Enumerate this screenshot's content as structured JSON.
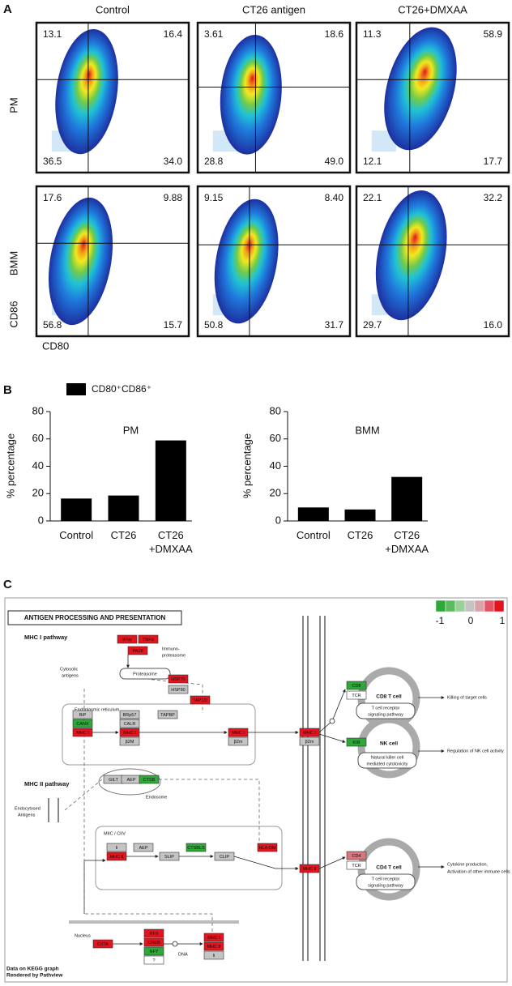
{
  "panel_labels": [
    "A",
    "B",
    "C"
  ],
  "flow": {
    "columns": [
      "Control",
      "CT26 antigen",
      "CT26+DMXAA"
    ],
    "rows": [
      "PM",
      "BMM"
    ],
    "y_axis_label": "CD86",
    "x_axis_label": "CD80",
    "plots": [
      [
        "13.1",
        "16.4",
        "36.5",
        "34.0"
      ],
      [
        "3.61",
        "18.6",
        "28.8",
        "49.0"
      ],
      [
        "11.3",
        "58.9",
        "12.1",
        "17.7"
      ],
      [
        "17.6",
        "9.88",
        "56.8",
        "15.7"
      ],
      [
        "9.15",
        "8.40",
        "50.8",
        "31.7"
      ],
      [
        "22.1",
        "32.2",
        "29.7",
        "16.0"
      ]
    ]
  },
  "bar_legend": "CD80⁺CD86⁺",
  "chart_data": [
    {
      "type": "bar",
      "title": "PM",
      "y_label": "% percentage",
      "categories": [
        "Control",
        "CT26",
        "CT26 +DMXAA"
      ],
      "values": [
        16.4,
        18.6,
        58.9
      ],
      "color": "#000000",
      "ylim": [
        0,
        80
      ],
      "yticks": [
        0,
        20,
        40,
        60,
        80
      ]
    },
    {
      "type": "bar",
      "title": "BMM",
      "y_label": "% percentage",
      "categories": [
        "Control",
        "CT26",
        "CT26 +DMXAA"
      ],
      "values": [
        9.88,
        8.4,
        32.2
      ],
      "color": "#000000",
      "ylim": [
        0,
        80
      ],
      "yticks": [
        0,
        20,
        40,
        60,
        80
      ]
    }
  ],
  "pathway": {
    "title": "ANTIGEN PROCESSING AND PRESENTATION",
    "scale": {
      "labels": [
        "-1",
        "0",
        "1"
      ],
      "colors": [
        "#2fa83a",
        "#5dbb5f",
        "#98d196",
        "#c4c4c4",
        "#d9a3aa",
        "#e35563",
        "#e3141e"
      ]
    },
    "texts": [
      "MHC I pathway",
      "MHC II pathway",
      "Immuno-",
      "proteasome",
      "Cytosolic",
      "antigens",
      "Proteasome",
      "Endoplasmic reticulum",
      "Endosome",
      "Endocytosed",
      "Antigens",
      "MIIC / CIIV",
      "Nucleus",
      "DNA",
      "CD8 T cell",
      "T cell receptor",
      "signaling pathway",
      "Killing of target cells",
      "NK cell",
      "Natural killer cell",
      "mediated cytotoxicity",
      "Regulation of NK cell activity",
      "CD4 T cell",
      "T cell receptor",
      "signaling pathway",
      "Cytokine production,",
      "Activation of other immune cells",
      "Data on KEGG graph",
      "Rendered by Pathview"
    ],
    "nodes": [
      {
        "label": "IFNγ",
        "color": "#e3141e"
      },
      {
        "label": "TNFα",
        "color": "#e3141e"
      },
      {
        "label": "PA28",
        "color": "#e3141e"
      },
      {
        "label": "HSP70",
        "color": "#e3141e"
      },
      {
        "label": "HSP90",
        "color": "#c4c4c4"
      },
      {
        "label": "TAP1/2",
        "color": "#e3141e"
      },
      {
        "label": "BiP",
        "color": "#c4c4c4"
      },
      {
        "label": "CANX",
        "color": "#2fa83a"
      },
      {
        "label": "MHC I",
        "color": "#e3141e"
      },
      {
        "label": "BRp57",
        "color": "#c4c4c4"
      },
      {
        "label": "CALR",
        "color": "#c4c4c4"
      },
      {
        "label": "MHC I",
        "color": "#e3141e"
      },
      {
        "label": "β2M",
        "color": "#c4c4c4"
      },
      {
        "label": "TAPBP",
        "color": "#c4c4c4"
      },
      {
        "label": "MHC I",
        "color": "#e3141e"
      },
      {
        "label": "β2m",
        "color": "#c4c4c4"
      },
      {
        "label": "MHC I",
        "color": "#e3141e"
      },
      {
        "label": "β2m",
        "color": "#c4c4c4"
      },
      {
        "label": "CD8",
        "color": "#2fa83a"
      },
      {
        "label": "TCR",
        "color": "#ffffff"
      },
      {
        "label": "KIR",
        "color": "#2fa83a"
      },
      {
        "label": "GILT",
        "color": "#c4c4c4"
      },
      {
        "label": "AEP",
        "color": "#c4c4c4"
      },
      {
        "label": "CTSB",
        "color": "#2fa83a"
      },
      {
        "label": "Ii",
        "color": "#c4c4c4"
      },
      {
        "label": "MHC II",
        "color": "#e3141e"
      },
      {
        "label": "AEP",
        "color": "#c4c4c4"
      },
      {
        "label": "SLIP",
        "color": "#c4c4c4"
      },
      {
        "label": "CTSBLS",
        "color": "#2fa83a"
      },
      {
        "label": "CLIP",
        "color": "#c4c4c4"
      },
      {
        "label": "HLA-DM",
        "color": "#e3141e"
      },
      {
        "label": "MHC II",
        "color": "#e3141e"
      },
      {
        "label": "CD4",
        "color": "#d7767d"
      },
      {
        "label": "TCR",
        "color": "#ffffff"
      },
      {
        "label": "CIITA",
        "color": "#e3141e"
      },
      {
        "label": "RFX",
        "color": "#e3141e"
      },
      {
        "label": "CREB",
        "color": "#e3141e"
      },
      {
        "label": "NFY",
        "color": "#2fa83a"
      },
      {
        "label": "?",
        "color": "#ffffff"
      },
      {
        "label": "MHC I",
        "color": "#e3141e"
      },
      {
        "label": "MHC II",
        "color": "#e3141e"
      },
      {
        "label": "Ii",
        "color": "#c4c4c4"
      }
    ]
  }
}
